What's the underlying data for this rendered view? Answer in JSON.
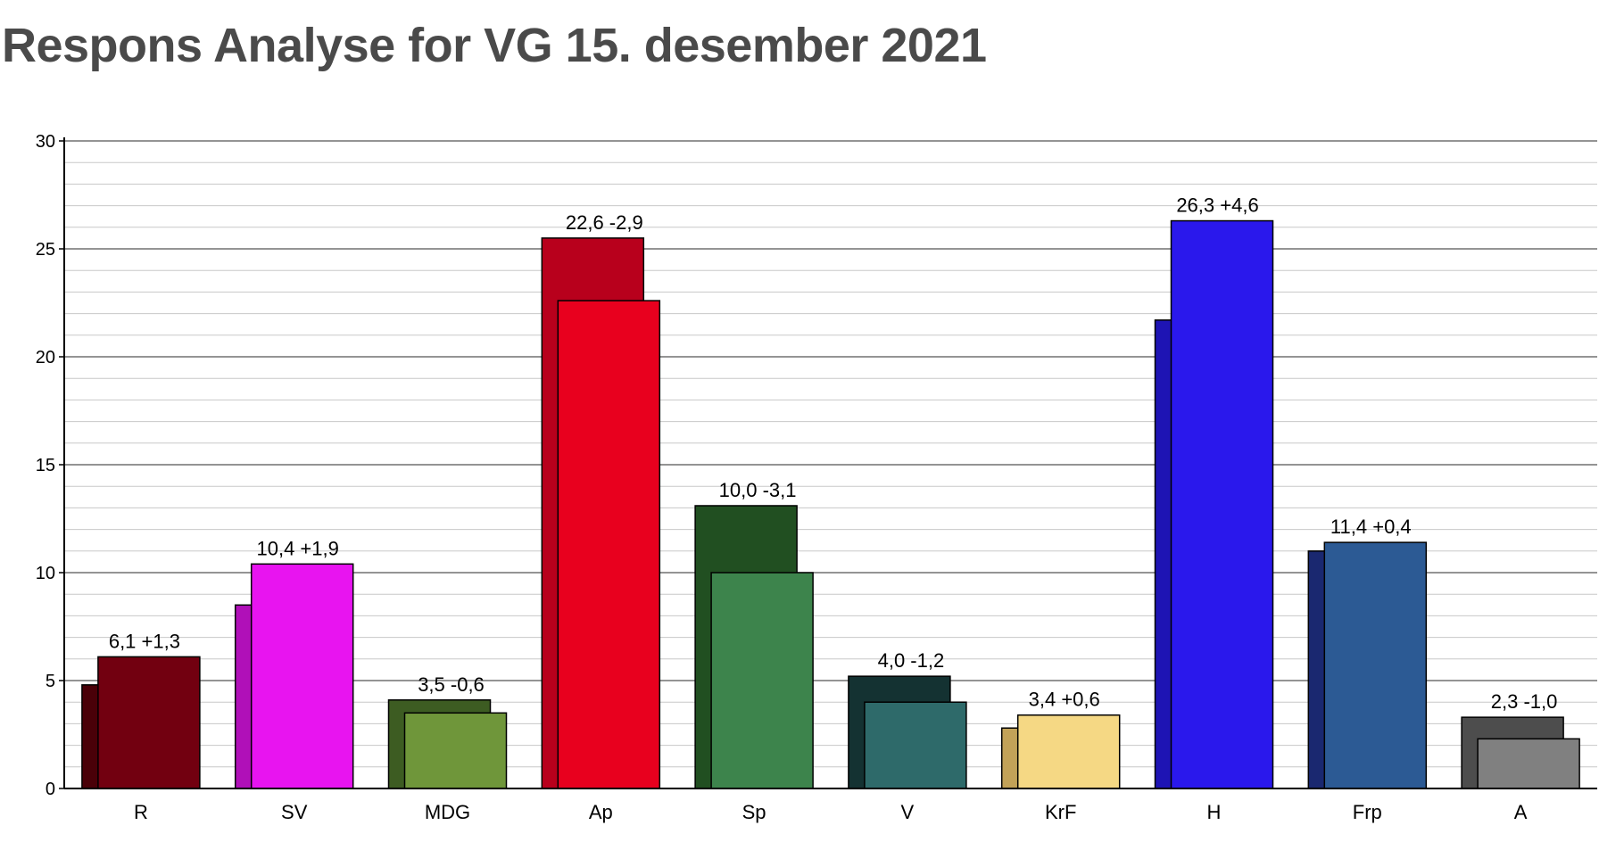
{
  "chart_data": {
    "type": "bar",
    "title": "Respons Analyse for VG 15. desember 2021",
    "xlabel": "",
    "ylabel": "",
    "ylim": [
      0,
      30
    ],
    "yticks": [
      0,
      5,
      10,
      15,
      20,
      25,
      30
    ],
    "minor_grid_step": 1,
    "grid": true,
    "categories": [
      "R",
      "SV",
      "MDG",
      "Ap",
      "Sp",
      "V",
      "KrF",
      "H",
      "Frp",
      "A"
    ],
    "series": [
      {
        "values": [
          4.8,
          8.5,
          4.1,
          25.5,
          13.1,
          5.2,
          2.8,
          21.7,
          11.0,
          3.3
        ]
      },
      {
        "values": [
          6.1,
          10.4,
          3.5,
          22.6,
          10.0,
          4.0,
          3.4,
          26.3,
          11.4,
          2.3
        ]
      }
    ],
    "data_labels": [
      "6,1 +1,3",
      "10,4 +1,9",
      "3,5 -0,6",
      "22,6 -2,9",
      "10,0 -3,1",
      "4,0 -1,2",
      "3,4 +0,6",
      "26,3 +4,6",
      "11,4 +0,4",
      "2,3 -1,0"
    ],
    "colors": {
      "previous": [
        "#4a0008",
        "#b010b8",
        "#3d5c22",
        "#b8001c",
        "#214f21",
        "#143232",
        "#c2a258",
        "#1e14b4",
        "#1a2870",
        "#4d4d4d"
      ],
      "current": [
        "#720010",
        "#e814f0",
        "#6f963a",
        "#e8001e",
        "#3d844c",
        "#2e6a6a",
        "#f5d884",
        "#2a18ec",
        "#2c5a94",
        "#808080"
      ]
    }
  }
}
